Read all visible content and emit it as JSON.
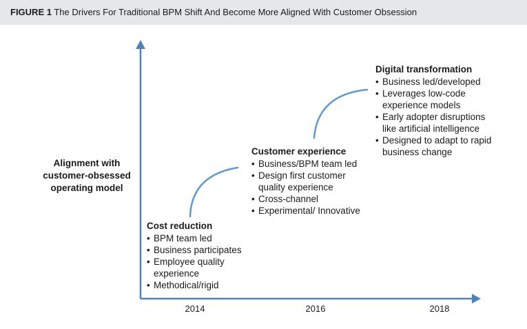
{
  "figure": {
    "label": "FIGURE 1",
    "title": "The Drivers For Traditional BPM Shift And Become More Aligned With Customer Obsession"
  },
  "axis": {
    "y_label_lines": [
      "Alignment with",
      "customer-obsessed",
      "operating model"
    ],
    "x_ticks": [
      "2014",
      "2016",
      "2018"
    ]
  },
  "colors": {
    "axis": "#4f81bd",
    "connector": "#5b9bd5",
    "header_bg": "#e6e7e8"
  },
  "stages": [
    {
      "title": "Cost reduction",
      "items": [
        "BPM team led",
        "Business participates",
        "Employee quality experience",
        "Methodical/rigid"
      ]
    },
    {
      "title": "Customer experience",
      "items": [
        "Business/BPM team led",
        "Design first customer quality experience",
        "Cross-channel",
        "Experimental/ Innovative"
      ]
    },
    {
      "title": "Digital transformation",
      "items": [
        "Business led/developed",
        "Leverages low-code experience models",
        "Early adopter disruptions like artificial intelligence",
        "Designed to adapt to rapid business change"
      ]
    }
  ]
}
